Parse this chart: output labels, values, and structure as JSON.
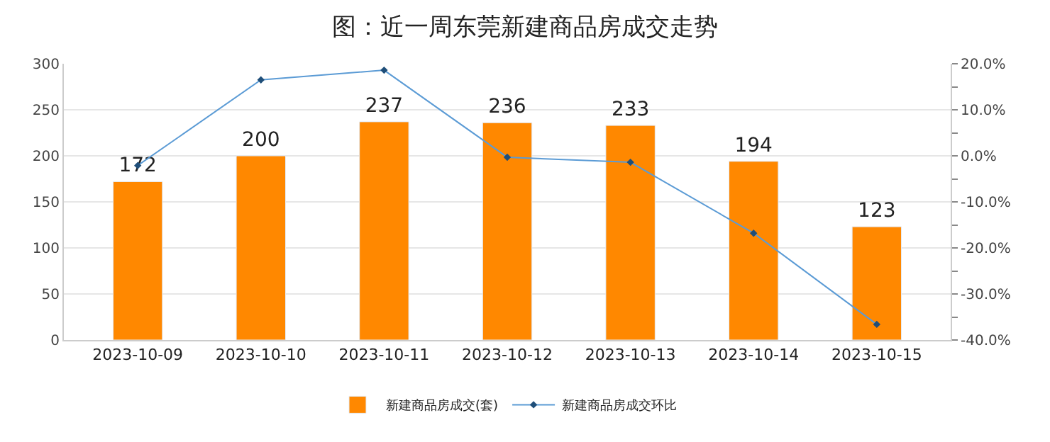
{
  "chart_data": {
    "type": "bar",
    "title": "图：近一周东莞新建商品房成交走势",
    "categories": [
      "2023-10-09",
      "2023-10-10",
      "2023-10-11",
      "2023-10-12",
      "2023-10-13",
      "2023-10-14",
      "2023-10-15"
    ],
    "series": [
      {
        "name": "新建商品房成交(套)",
        "color": "#ff8800",
        "values": [
          172,
          200,
          237,
          236,
          233,
          194,
          123
        ],
        "data_labels": true
      },
      {
        "name": "新建商品房成交环比",
        "type": "line",
        "axis": "y2",
        "color": "#5b9bd5",
        "marker": "diamond",
        "values": [
          -2.1,
          16.5,
          18.6,
          -0.3,
          -1.4,
          -16.8,
          -36.6
        ]
      }
    ],
    "ylim": [
      0,
      300
    ],
    "yticks": [
      0,
      50,
      100,
      150,
      200,
      250,
      300
    ],
    "y2lim": [
      -40,
      20
    ],
    "y2ticks": [
      {
        "value": -40,
        "label": "-40.0%"
      },
      {
        "value": -35,
        "label": null
      },
      {
        "value": -30,
        "label": "-30.0%"
      },
      {
        "value": -25,
        "label": null
      },
      {
        "value": -20,
        "label": "-20.0%"
      },
      {
        "value": -15,
        "label": null
      },
      {
        "value": -10,
        "label": "-10.0%"
      },
      {
        "value": -5,
        "label": null
      },
      {
        "value": 0,
        "label": "0.0%"
      },
      {
        "value": 5,
        "label": null
      },
      {
        "value": 10,
        "label": "10.0%"
      },
      {
        "value": 15,
        "label": null
      },
      {
        "value": 20,
        "label": "20.0%"
      }
    ],
    "grid": "y",
    "legend": "bottom"
  }
}
